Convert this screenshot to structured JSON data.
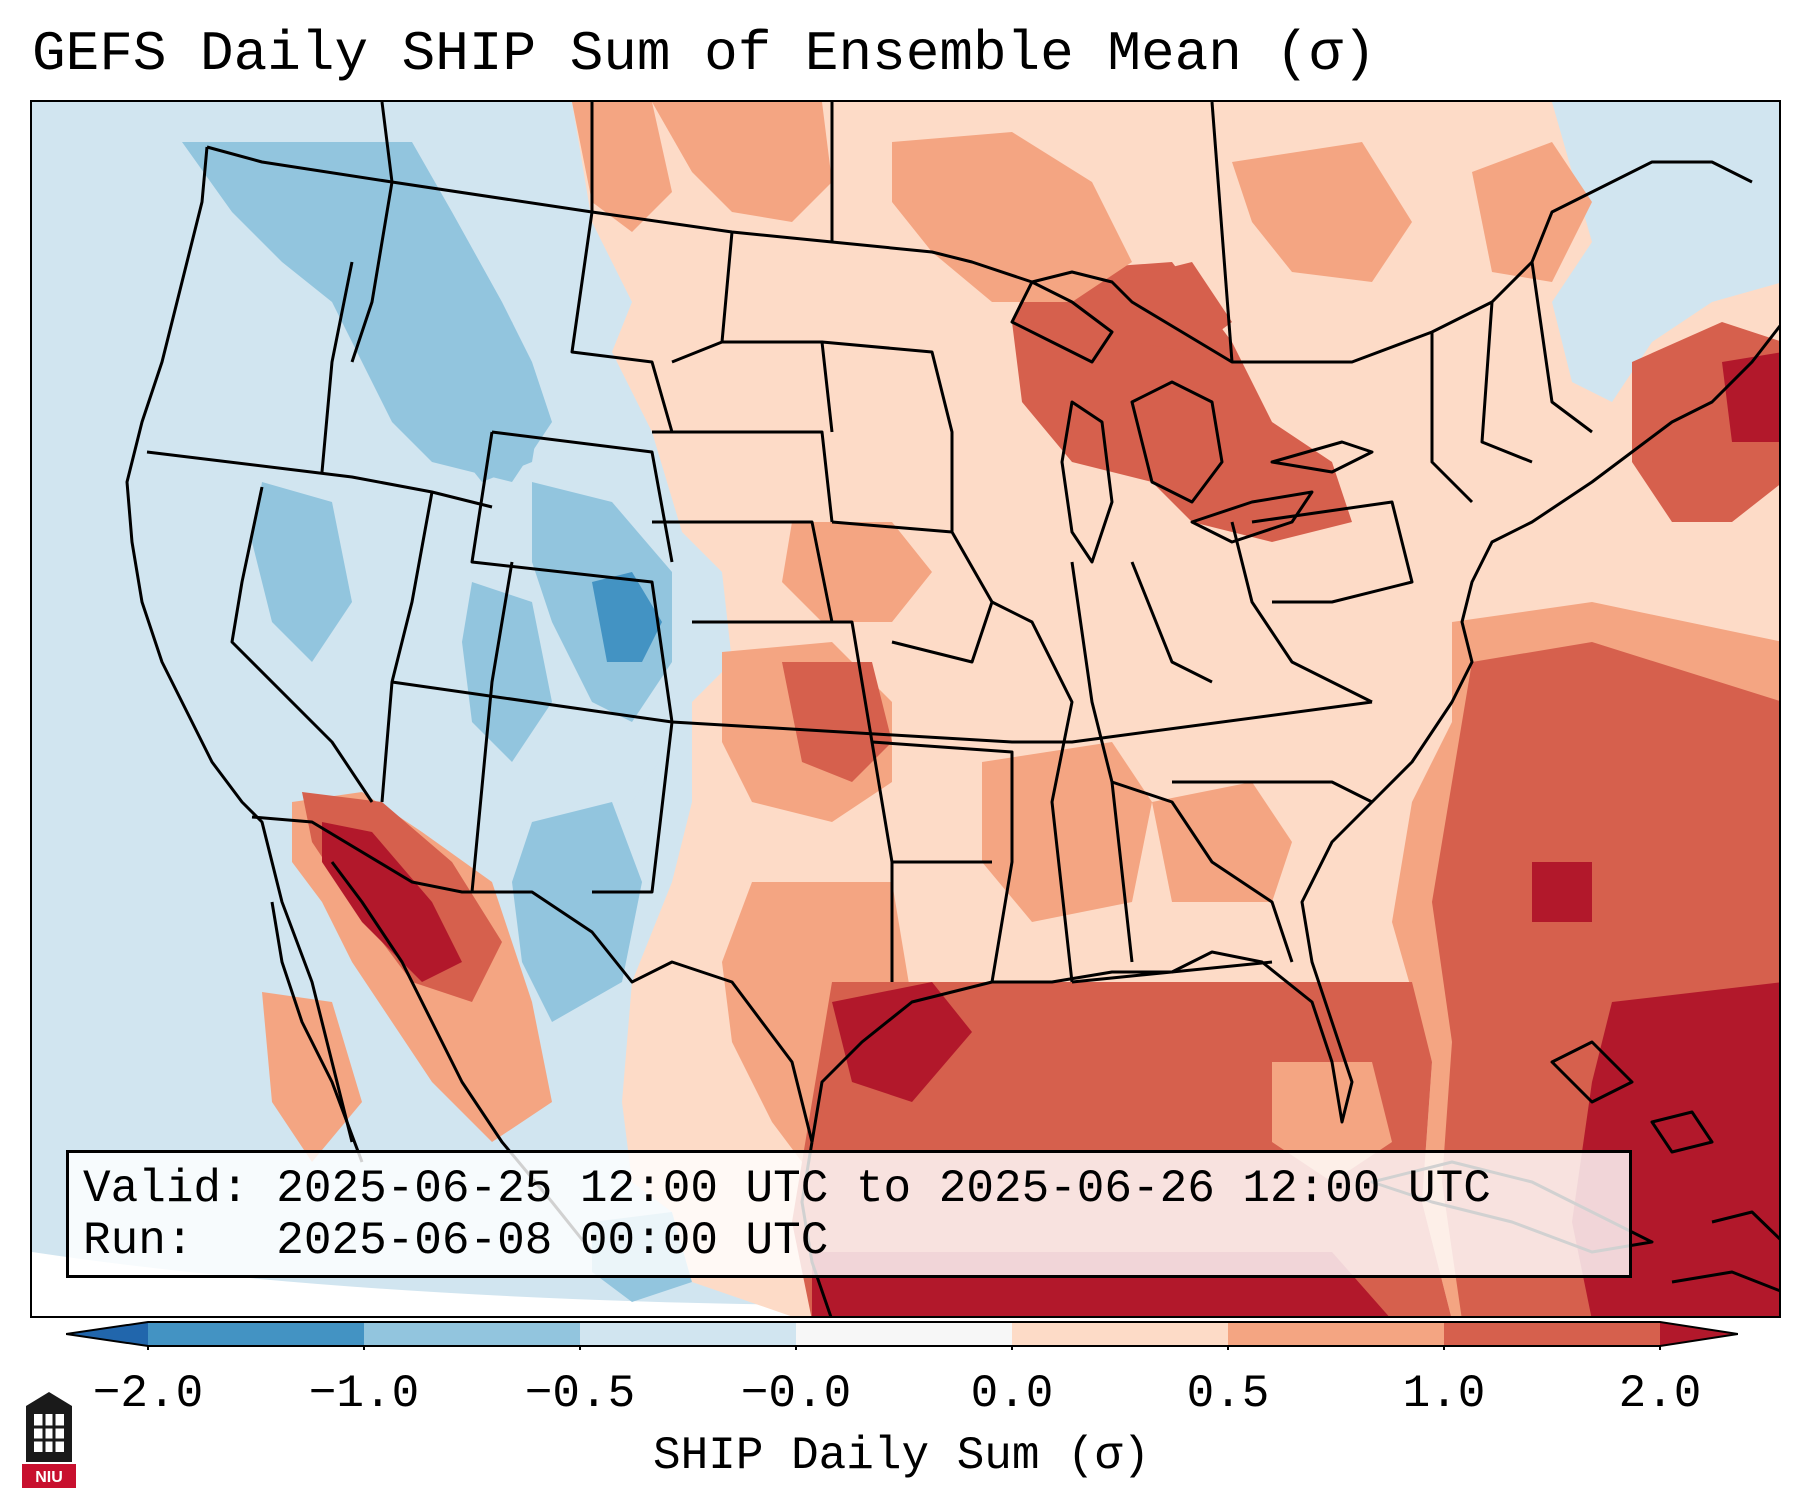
{
  "title": "GEFS Daily SHIP Sum of Ensemble Mean (σ)",
  "info": {
    "valid_label": "Valid:",
    "valid_text": "2025-06-25 12:00 UTC to 2025-06-26 12:00 UTC",
    "run_label": "Run:",
    "run_text": "2025-06-08 00:00 UTC"
  },
  "colorbar": {
    "label": "SHIP Daily Sum (σ)",
    "ticks": [
      "−2.0",
      "−1.0",
      "−0.5",
      "−0.0",
      "0.0",
      "0.5",
      "1.0",
      "2.0"
    ],
    "colors": [
      "#4393c3",
      "#92c5de",
      "#d1e5f0",
      "#f7f7f7",
      "#fddbc7",
      "#f4a582",
      "#d6604d"
    ],
    "under_color": "#2166ac",
    "over_color": "#b2182b"
  },
  "logo": {
    "text": "NIU",
    "name": "Northern Illinois University"
  },
  "map": {
    "region": "Contiguous United States",
    "background_color": "#d1e5f0",
    "land_outside_color": "#ffffff"
  }
}
